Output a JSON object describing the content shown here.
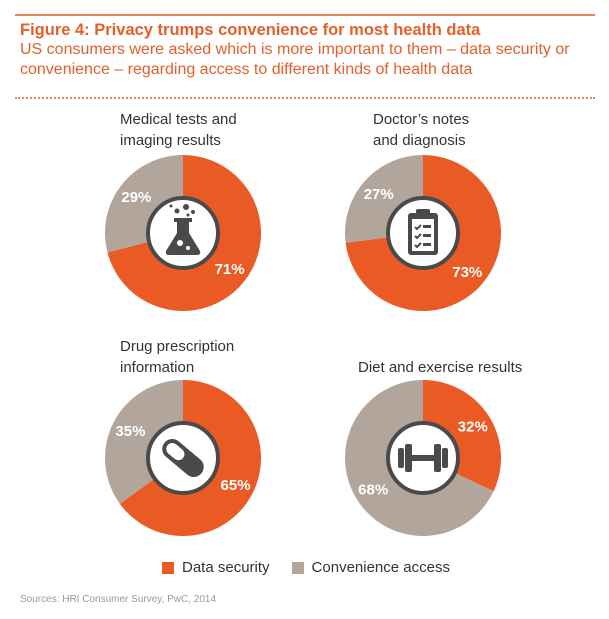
{
  "header": {
    "title": "Figure 4: Privacy trumps convenience for most health data",
    "subtitle": "US consumers were asked which is more important to them – data security or convenience – regarding access to different kinds of health data"
  },
  "colors": {
    "data_security": "#ea5a24",
    "convenience": "#b2a69c",
    "icon": "#4a4a4a"
  },
  "chart_data": [
    {
      "type": "pie",
      "title_lines": [
        "Medical tests and",
        "imaging results"
      ],
      "icon": "flask-icon",
      "categories": [
        "Data security",
        "Convenience access"
      ],
      "values": [
        71,
        29
      ],
      "labels": [
        "71%",
        "29%"
      ]
    },
    {
      "type": "pie",
      "title_lines": [
        "Doctor’s notes",
        "and diagnosis"
      ],
      "icon": "clipboard-icon",
      "categories": [
        "Data security",
        "Convenience access"
      ],
      "values": [
        73,
        27
      ],
      "labels": [
        "73%",
        "27%"
      ]
    },
    {
      "type": "pie",
      "title_lines": [
        "Drug prescription",
        "information"
      ],
      "icon": "pill-icon",
      "categories": [
        "Data security",
        "Convenience access"
      ],
      "values": [
        65,
        35
      ],
      "labels": [
        "65%",
        "35%"
      ]
    },
    {
      "type": "pie",
      "title_lines": [
        "Diet and exercise results"
      ],
      "icon": "dumbbell-icon",
      "categories": [
        "Data security",
        "Convenience access"
      ],
      "values": [
        32,
        68
      ],
      "labels": [
        "32%",
        "68%"
      ]
    }
  ],
  "legend": {
    "items": [
      "Data security",
      "Convenience access"
    ],
    "placement": "bottom"
  },
  "source": "Sources: HRI Consumer Survey, PwC, 2014"
}
